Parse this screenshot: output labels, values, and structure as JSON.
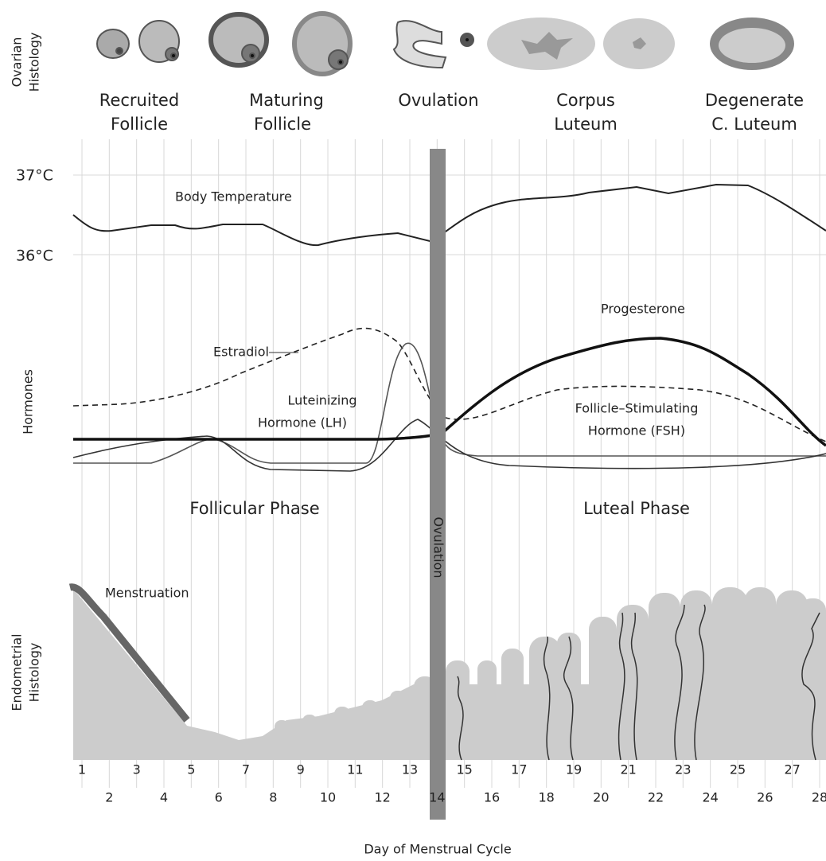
{
  "side_labels": {
    "ovarian": [
      "Ovarian",
      "Histology"
    ],
    "hormones": "Hormones",
    "endometrial": [
      "Endometrial",
      "Histology"
    ]
  },
  "stages": [
    [
      "Recruited",
      "Follicle"
    ],
    [
      "Maturing",
      "Follicle"
    ],
    [
      "Ovulation"
    ],
    [
      "Corpus",
      "Luteum"
    ],
    [
      "Degenerate",
      "C. Luteum"
    ]
  ],
  "temperature": {
    "high": "37°C",
    "low": "36°C",
    "label": "Body Temperature"
  },
  "hormones": {
    "estradiol": "Estradiol",
    "lh": [
      "Luteinizing",
      "Hormone (LH)"
    ],
    "progesterone": "Progesterone",
    "fsh": [
      "Follicle–Stimulating",
      "Hormone (FSH)"
    ]
  },
  "phases": {
    "follicular": "Follicular Phase",
    "luteal": "Luteal Phase",
    "ovulation": "Ovulation"
  },
  "menstruation": "Menstruation",
  "days": [
    "1",
    "2",
    "3",
    "4",
    "5",
    "6",
    "7",
    "8",
    "9",
    "10",
    "11",
    "12",
    "13",
    "14",
    "15",
    "16",
    "17",
    "18",
    "19",
    "20",
    "21",
    "22",
    "23",
    "24",
    "25",
    "26",
    "27",
    "28"
  ],
  "x_axis_label": "Day of Menstrual Cycle"
}
